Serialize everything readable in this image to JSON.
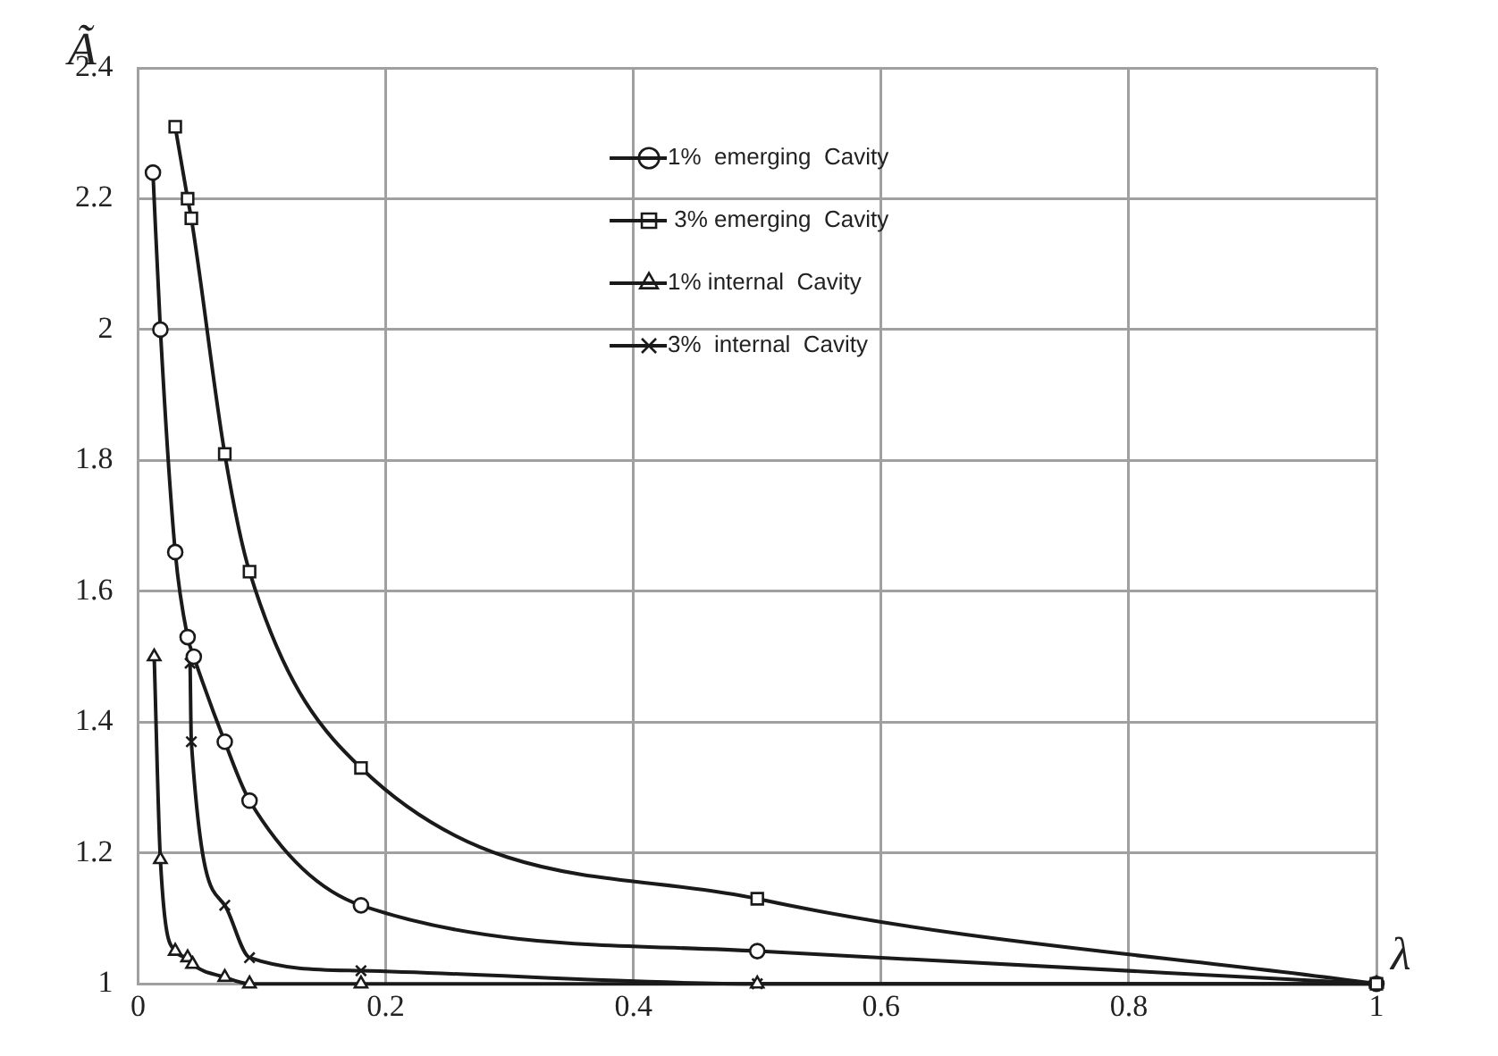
{
  "chart_data": {
    "type": "line",
    "xlabel": "λ",
    "ylabel": "Ã",
    "xlim": [
      0,
      1
    ],
    "xticks": [
      {
        "value": 0,
        "label": "0"
      },
      0.2,
      0.4,
      0.6,
      0.8,
      {
        "value": 1,
        "label": "1"
      }
    ],
    "ylim": [
      1,
      2.4
    ],
    "yticks": [
      {
        "value": 1,
        "label": "1"
      },
      1.2,
      1.4,
      1.6,
      1.8,
      {
        "value": 2,
        "label": "2"
      },
      2.2,
      2.4
    ],
    "grid": true,
    "legend": "top",
    "line_style": "solid",
    "series": [
      {
        "name": "1%  emerging  Cavity",
        "color": "#1a1a1a",
        "marker": "circle",
        "x": [
          0.012,
          0.018,
          0.03,
          0.04,
          0.045,
          0.07,
          0.09,
          0.18,
          0.5,
          1
        ],
        "values": [
          2.24,
          2.0,
          1.66,
          1.53,
          1.5,
          1.37,
          1.28,
          1.12,
          1.05,
          1.0
        ]
      },
      {
        "name": " 3% emerging  Cavity",
        "color": "#1a1a1a",
        "marker": "square",
        "x": [
          0.03,
          0.04,
          0.043,
          0.07,
          0.09,
          0.18,
          0.5,
          1
        ],
        "values": [
          2.31,
          2.2,
          2.17,
          1.81,
          1.63,
          1.33,
          1.13,
          1.0
        ]
      },
      {
        "name": "1% internal  Cavity",
        "color": "#1a1a1a",
        "marker": "triangle",
        "x": [
          0.013,
          0.018,
          0.03,
          0.04,
          0.044,
          0.07,
          0.09,
          0.18,
          0.5,
          1
        ],
        "values": [
          1.5,
          1.19,
          1.05,
          1.04,
          1.03,
          1.01,
          1.0,
          1.0,
          1.0,
          1.0
        ]
      },
      {
        "name": "3%  internal  Cavity",
        "color": "#1a1a1a",
        "marker": "cross",
        "x": [
          0.042,
          0.043,
          0.07,
          0.09,
          0.18,
          0.5,
          1
        ],
        "values": [
          1.49,
          1.37,
          1.12,
          1.04,
          1.02,
          1.0,
          1.0
        ]
      }
    ]
  }
}
